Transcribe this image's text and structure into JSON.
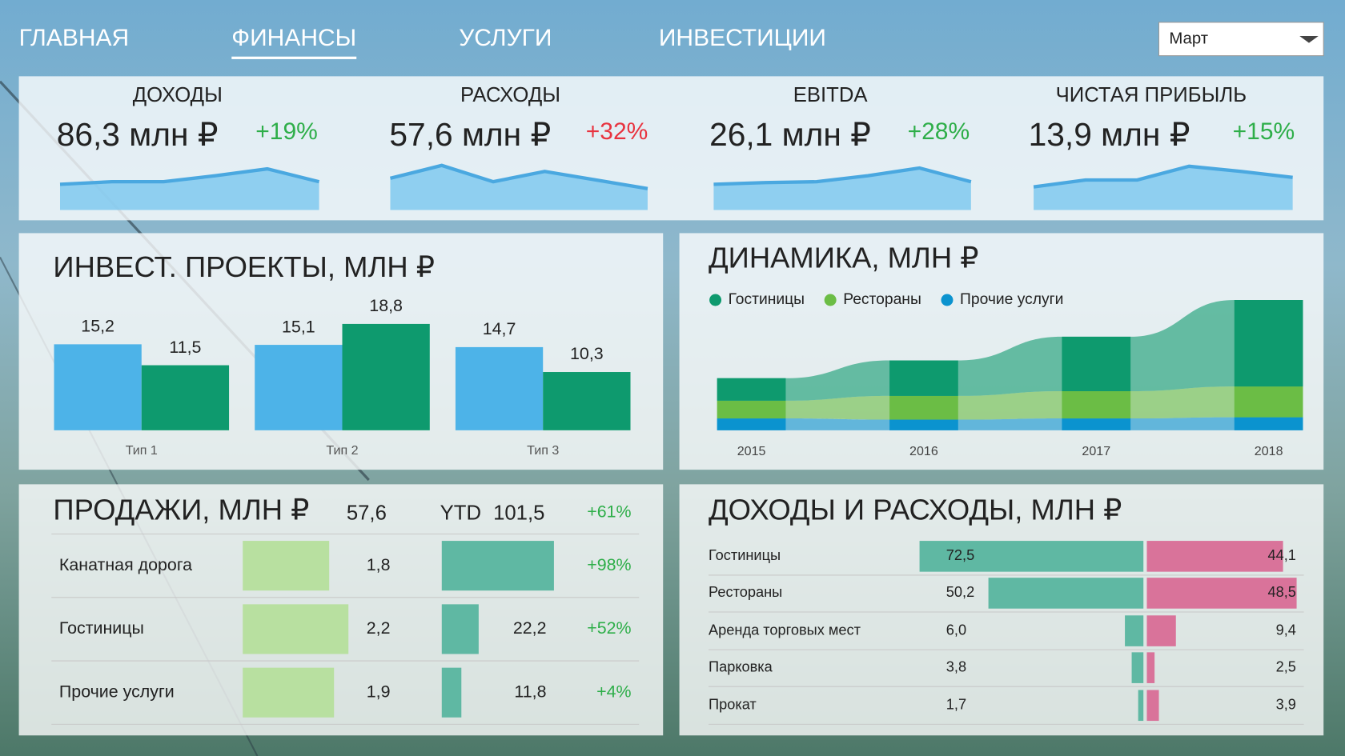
{
  "nav": {
    "items": [
      "ГЛАВНАЯ",
      "ФИНАНСЫ",
      "УСЛУГИ",
      "ИНВЕСТИЦИИ"
    ],
    "selected": 1
  },
  "month_select": "Март",
  "kpis": [
    {
      "title": "ДОХОДЫ",
      "value": "86,3 млн ₽",
      "change": "+19%",
      "change_color": "#2eae49",
      "sparkline": {
        "values": [
          30,
          33,
          33,
          40,
          48,
          33
        ],
        "ylim": [
          0,
          55
        ],
        "color": "#4aa8e0"
      }
    },
    {
      "title": "РАСХОДЫ",
      "value": "57,6 млн ₽",
      "change": "+32%",
      "change_color": "#e8333f",
      "sparkline": {
        "values": [
          37,
          52,
          33,
          45,
          35,
          25
        ],
        "ylim": [
          0,
          55
        ],
        "color": "#4aa8e0"
      }
    },
    {
      "title": "EBITDA",
      "value": "26,1 млн ₽",
      "change": "+28%",
      "change_color": "#2eae49",
      "sparkline": {
        "values": [
          30,
          32,
          33,
          40,
          49,
          33
        ],
        "ylim": [
          0,
          55
        ],
        "color": "#4aa8e0"
      }
    },
    {
      "title": "ЧИСТАЯ ПРИБЫЛЬ",
      "value": "13,9 млн ₽",
      "change": "+15%",
      "change_color": "#2eae49",
      "sparkline": {
        "values": [
          27,
          35,
          35,
          51,
          45,
          38
        ],
        "ylim": [
          0,
          55
        ],
        "color": "#4aa8e0"
      }
    }
  ],
  "chart_data": [
    {
      "type": "grouped-bar",
      "title": "ИНВЕСТ. ПРОЕКТЫ, МЛН ₽",
      "categories": [
        "Тип 1",
        "Тип 2",
        "Тип 3"
      ],
      "series": [
        {
          "color": "#4db3e8",
          "values": [
            15.2,
            15.1,
            14.7
          ],
          "value_labels": [
            "15,2",
            "15,1",
            "14,7"
          ]
        },
        {
          "color": "#0e9a6e",
          "values": [
            11.5,
            18.8,
            10.3
          ],
          "value_labels": [
            "11,5",
            "18,8",
            "10,3"
          ]
        }
      ],
      "ylim": [
        0,
        20
      ]
    },
    {
      "type": "stream",
      "title": "ДИНАМИКА, МЛН ₽",
      "categories": [
        "2015",
        "2016",
        "2017",
        "2018"
      ],
      "series": [
        {
          "name": "Гостиницы",
          "color": "#0e9a6e",
          "values": [
            19,
            30,
            46,
            73
          ]
        },
        {
          "name": "Рестораны",
          "color": "#6bbd45",
          "values": [
            15,
            20,
            23,
            26
          ]
        },
        {
          "name": "Прочие услуги",
          "color": "#0b93cf",
          "values": [
            10,
            9,
            10,
            11
          ]
        }
      ],
      "ylim": [
        0,
        110
      ]
    },
    {
      "type": "bar-table",
      "title": "ПРОДАЖИ, МЛН ₽",
      "total": "57,6",
      "ytd_title": "YTD",
      "ytd_total": "101,5",
      "ytd_change": "+61%",
      "change_color": "#2eae49",
      "categories": [
        "Канатная дорога",
        "Гостиницы",
        "Прочие услуги"
      ],
      "series": [
        {
          "color": "#b8e0a0",
          "values": [
            1.8,
            2.2,
            1.9
          ],
          "value_labels": [
            "1,8",
            "2,2",
            "1,9"
          ],
          "xlim": [
            0,
            2.5
          ]
        },
        {
          "color": "#5fb8a3",
          "values": [
            67.5,
            22.2,
            11.8
          ],
          "value_labels": [
            null,
            "22,2",
            "11,8"
          ],
          "xlim": [
            0,
            80
          ]
        }
      ],
      "changes": [
        "+98%",
        "+52%",
        "+4%"
      ]
    },
    {
      "type": "diverging-bar",
      "title": "ДОХОДЫ И РАСХОДЫ, МЛН ₽",
      "categories": [
        "Гостиницы",
        "Рестораны",
        "Аренда торговых мест",
        "Парковка",
        "Прокат"
      ],
      "series": [
        {
          "color": "#5fb8a3",
          "values": [
            72.5,
            50.2,
            6.0,
            3.8,
            1.7
          ],
          "value_labels": [
            "72,5",
            "50,2",
            "6,0",
            "3,8",
            "1,7"
          ]
        },
        {
          "color": "#d9739a",
          "values": [
            44.1,
            48.5,
            9.4,
            2.5,
            3.9
          ],
          "value_labels": [
            "44,1",
            "48,5",
            "9,4",
            "2,5",
            "3,9"
          ]
        }
      ],
      "xlim": [
        0,
        80
      ]
    }
  ]
}
